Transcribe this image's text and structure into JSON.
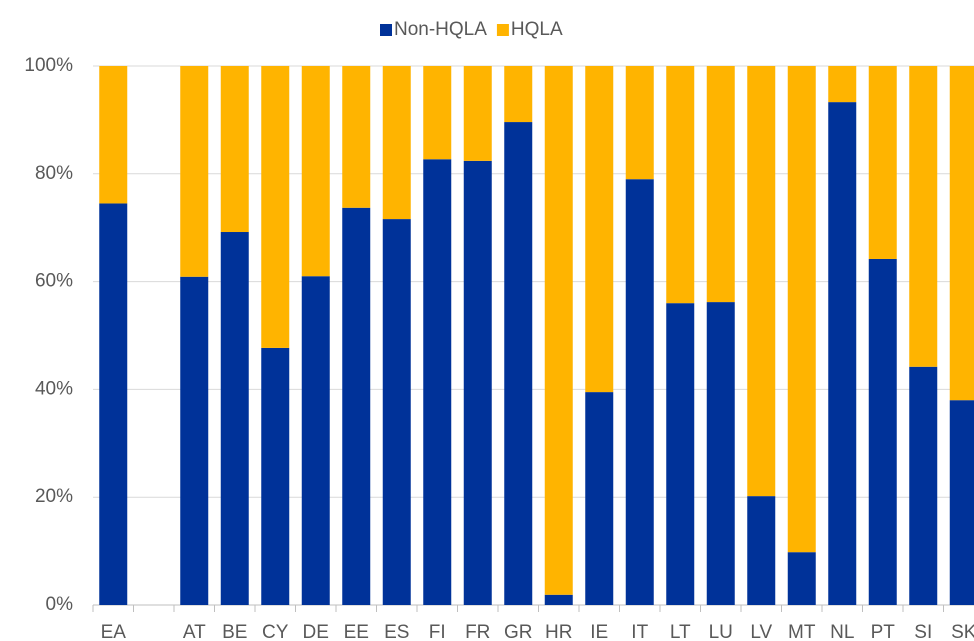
{
  "chart_data": {
    "type": "stacked_bar",
    "categories": [
      "EA",
      null,
      "AT",
      "BE",
      "CY",
      "DE",
      "EE",
      "ES",
      "FI",
      "FR",
      "GR",
      "HR",
      "IE",
      "IT",
      "LT",
      "LU",
      "LV",
      "MT",
      "NL",
      "PT",
      "SI",
      "SK"
    ],
    "series": [
      {
        "name": "Non-HQLA",
        "color": "#003299",
        "values": [
          74.5,
          null,
          60.9,
          69.2,
          47.7,
          61.0,
          73.7,
          71.6,
          82.7,
          82.4,
          89.6,
          1.9,
          39.5,
          79.0,
          56.0,
          56.2,
          20.2,
          9.8,
          93.3,
          64.2,
          44.2,
          38.0
        ]
      },
      {
        "name": "HQLA",
        "color": "#FFB400",
        "values": [
          25.5,
          null,
          39.1,
          30.8,
          52.3,
          39.0,
          26.3,
          28.4,
          17.3,
          17.6,
          10.4,
          98.1,
          60.5,
          21.0,
          44.0,
          43.8,
          79.8,
          90.2,
          6.7,
          35.8,
          55.8,
          62.0
        ]
      }
    ],
    "ylim": [
      0,
      100
    ],
    "yticks": [
      {
        "value": 0,
        "label": "0%"
      },
      {
        "value": 20,
        "label": "20%"
      },
      {
        "value": 40,
        "label": "40%"
      },
      {
        "value": 60,
        "label": "60%"
      },
      {
        "value": 80,
        "label": "80%"
      },
      {
        "value": 100,
        "label": "100%"
      }
    ],
    "grid": true,
    "legend": "top"
  }
}
